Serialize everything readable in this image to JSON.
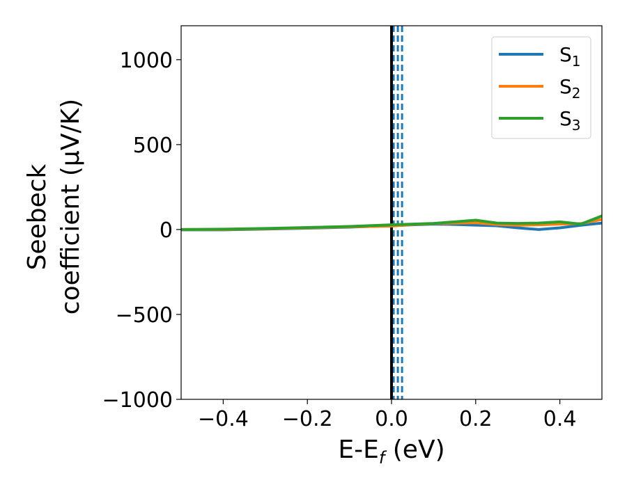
{
  "chart_data": {
    "type": "line",
    "xlabel": "E-E",
    "xlabel_sub": "f",
    "xlabel_unit": " (eV)",
    "ylabel_line1": "Seebeck",
    "ylabel_line2": "coefficient  (μV/K)",
    "xlim": [
      -0.5,
      0.5
    ],
    "ylim": [
      -1000,
      1200
    ],
    "xticks": [
      -0.4,
      -0.2,
      0.0,
      0.2,
      0.4
    ],
    "xtick_labels": [
      "−0.4",
      "−0.2",
      "0.0",
      "0.2",
      "0.4"
    ],
    "yticks": [
      -1000,
      -500,
      0,
      500,
      1000
    ],
    "ytick_labels": [
      "−1000",
      "−500",
      "0",
      "500",
      "1000"
    ],
    "grid": false,
    "legend_position": "top-right",
    "reference_line": {
      "x": 0.0,
      "color": "#000000",
      "style": "solid"
    },
    "dashed_lines": {
      "x": [
        0.005,
        0.015,
        0.025
      ],
      "color": "#1f77b4",
      "style": "dashed"
    },
    "series": [
      {
        "name": "S",
        "sub": "1",
        "color": "#1f77b4",
        "x": [
          -0.5,
          -0.4,
          -0.3,
          -0.2,
          -0.1,
          0.0,
          0.05,
          0.1,
          0.15,
          0.2,
          0.25,
          0.3,
          0.35,
          0.4,
          0.45,
          0.5
        ],
        "y": [
          -2,
          -2,
          3,
          8,
          14,
          22,
          28,
          32,
          30,
          26,
          22,
          10,
          0,
          10,
          25,
          38
        ]
      },
      {
        "name": "S",
        "sub": "2",
        "color": "#ff7f0e",
        "x": [
          -0.5,
          -0.4,
          -0.3,
          -0.2,
          -0.1,
          0.0,
          0.05,
          0.1,
          0.15,
          0.2,
          0.25,
          0.3,
          0.35,
          0.4,
          0.45,
          0.5
        ],
        "y": [
          0,
          0,
          5,
          10,
          16,
          20,
          30,
          35,
          38,
          40,
          30,
          25,
          28,
          32,
          35,
          60
        ]
      },
      {
        "name": "S",
        "sub": "3",
        "color": "#2ca02c",
        "x": [
          -0.5,
          -0.4,
          -0.3,
          -0.2,
          -0.1,
          0.0,
          0.05,
          0.1,
          0.15,
          0.2,
          0.25,
          0.3,
          0.35,
          0.4,
          0.45,
          0.5
        ],
        "y": [
          0,
          2,
          6,
          12,
          18,
          28,
          32,
          36,
          45,
          55,
          38,
          36,
          38,
          45,
          32,
          80
        ]
      }
    ]
  }
}
